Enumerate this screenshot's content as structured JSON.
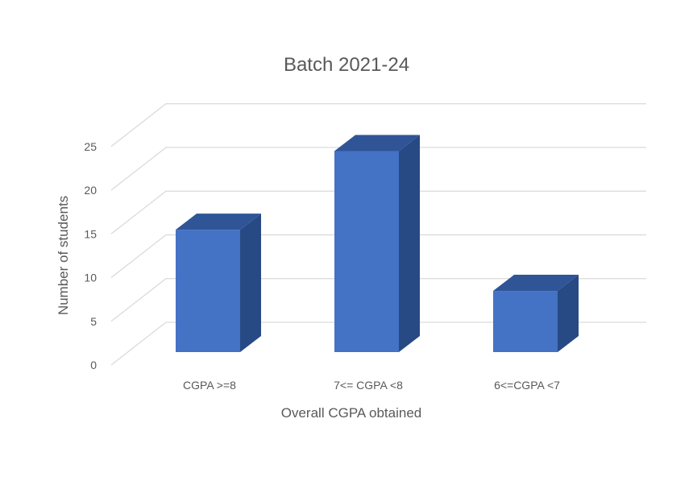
{
  "chart_data": {
    "type": "bar",
    "title": "Batch 2021-24",
    "xlabel": "Overall CGPA obtained",
    "ylabel": "Number of students",
    "categories": [
      "CGPA >=8",
      "7<= CGPA <8",
      "6<=CGPA <7"
    ],
    "values": [
      14,
      23,
      7
    ],
    "ylim": [
      0,
      25
    ],
    "yticks": [
      "0",
      "5",
      "10",
      "15",
      "20",
      "25"
    ],
    "grid": true,
    "legend": "none",
    "style": "3d-column",
    "colors": {
      "bar_front": "#4472C4",
      "bar_top": "#2F5597",
      "bar_side": "#284A84",
      "grid": "#D9D9D9",
      "text": "#595959"
    }
  }
}
